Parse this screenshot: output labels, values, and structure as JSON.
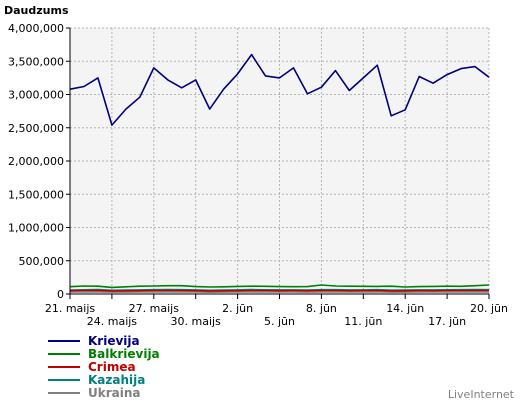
{
  "chart_data": {
    "type": "line",
    "ylabel": "Daudzums",
    "ylim": [
      0,
      4000000
    ],
    "yticks": [
      0,
      500000,
      1000000,
      1500000,
      2000000,
      2500000,
      3000000,
      3500000,
      4000000
    ],
    "ytick_labels": [
      "0",
      "500,000",
      "1,000,000",
      "1,500,000",
      "2,000,000",
      "2,500,000",
      "3,000,000",
      "3,500,000",
      "4,000,000"
    ],
    "x_count": 31,
    "xtick_labels": [
      {
        "index": 0,
        "label": "21. maijs",
        "row": 1
      },
      {
        "index": 3,
        "label": "24. maijs",
        "row": 2
      },
      {
        "index": 6,
        "label": "27. maijs",
        "row": 1
      },
      {
        "index": 9,
        "label": "30. maijs",
        "row": 2
      },
      {
        "index": 12,
        "label": "2. jūn",
        "row": 1
      },
      {
        "index": 15,
        "label": "5. jūn",
        "row": 2
      },
      {
        "index": 18,
        "label": "8. jūn",
        "row": 1
      },
      {
        "index": 21,
        "label": "11. jūn",
        "row": 2
      },
      {
        "index": 24,
        "label": "14. jūn",
        "row": 1
      },
      {
        "index": 27,
        "label": "17. jūn",
        "row": 2
      },
      {
        "index": 30,
        "label": "20. jūn",
        "row": 1
      }
    ],
    "grid": true,
    "legend_position": "bottom-left",
    "series": [
      {
        "name": "Krievija",
        "color": "#000080",
        "values": [
          3080000,
          3120000,
          3250000,
          2540000,
          2780000,
          2960000,
          3400000,
          3220000,
          3100000,
          3220000,
          2780000,
          3080000,
          3310000,
          3600000,
          3280000,
          3250000,
          3400000,
          3010000,
          3110000,
          3360000,
          3060000,
          3250000,
          3440000,
          2680000,
          2770000,
          3270000,
          3170000,
          3300000,
          3390000,
          3420000,
          3260000
        ]
      },
      {
        "name": "Balkrievija",
        "color": "#008000",
        "values": [
          110000,
          120000,
          118000,
          100000,
          108000,
          118000,
          120000,
          125000,
          125000,
          112000,
          105000,
          108000,
          115000,
          118000,
          116000,
          112000,
          110000,
          112000,
          135000,
          120000,
          118000,
          116000,
          115000,
          118000,
          105000,
          112000,
          115000,
          118000,
          116000,
          125000,
          135000
        ]
      },
      {
        "name": "Crimea",
        "color": "#c00000",
        "values": [
          50000,
          52000,
          54000,
          46000,
          48000,
          50000,
          52000,
          54000,
          52000,
          50000,
          46000,
          48000,
          50000,
          53000,
          52000,
          50000,
          51000,
          49000,
          52000,
          53000,
          50000,
          51000,
          52000,
          47000,
          48000,
          51000,
          50000,
          52000,
          53000,
          54000,
          52000
        ]
      },
      {
        "name": "Kazahija",
        "color": "#008080",
        "values": [
          60000,
          63000,
          66000,
          56000,
          58000,
          62000,
          65000,
          67000,
          64000,
          62000,
          55000,
          58000,
          61000,
          66000,
          63000,
          61000,
          62000,
          58000,
          64000,
          65000,
          61000,
          62000,
          64000,
          57000,
          59000,
          62000,
          61000,
          63000,
          65000,
          67000,
          64000
        ]
      },
      {
        "name": "Ukraina",
        "color": "#808080",
        "values": [
          30000,
          31000,
          32000,
          28000,
          29000,
          30000,
          31000,
          32000,
          31000,
          30000,
          27000,
          28000,
          30000,
          32000,
          31000,
          30000,
          30000,
          29000,
          31000,
          32000,
          30000,
          30000,
          31000,
          28000,
          29000,
          30000,
          30000,
          31000,
          32000,
          32000,
          31000
        ]
      }
    ]
  },
  "credit": "LiveInternet"
}
